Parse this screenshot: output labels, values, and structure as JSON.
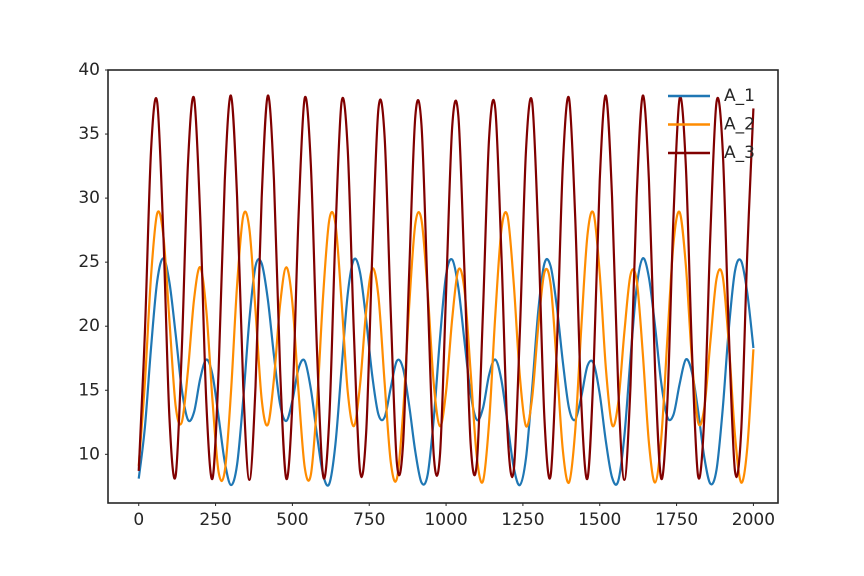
{
  "chart_data": {
    "type": "line",
    "x": [
      0,
      20,
      40,
      60,
      80,
      100,
      120,
      140,
      160,
      180,
      200,
      220,
      240,
      260,
      280,
      300,
      320,
      340,
      360,
      380,
      400,
      420,
      440,
      460,
      480,
      500,
      520,
      540,
      560,
      580,
      600,
      620,
      640,
      660,
      680,
      700,
      720,
      740,
      760,
      780,
      800,
      820,
      840,
      860,
      880,
      900,
      920,
      940,
      960,
      980,
      1000,
      1020,
      1040,
      1060,
      1080,
      1100,
      1120,
      1140,
      1160,
      1180,
      1200,
      1220,
      1240,
      1260,
      1280,
      1300,
      1320,
      1340,
      1360,
      1380,
      1400,
      1420,
      1440,
      1460,
      1480,
      1500,
      1520,
      1540,
      1560,
      1580,
      1600,
      1620,
      1640,
      1660,
      1680,
      1700,
      1720,
      1740,
      1760,
      1780,
      1800,
      1820,
      1840,
      1860,
      1880,
      1900,
      1920,
      1940,
      1960,
      1980,
      2000
    ],
    "series": [
      {
        "name": "A_1",
        "color": "#1f77b4",
        "values": [
          8.1,
          12.1,
          18.3,
          23.5,
          25.3,
          23.4,
          19.4,
          15.1,
          12.7,
          13.3,
          15.9,
          17.4,
          16.2,
          12.9,
          9.4,
          7.6,
          9.2,
          14.3,
          20.5,
          24.7,
          24.9,
          22.1,
          17.7,
          13.9,
          12.6,
          14.2,
          16.7,
          17.3,
          15.1,
          11.5,
          8.4,
          7.7,
          10.8,
          16.7,
          22.5,
          25.2,
          24.2,
          20.5,
          16.1,
          13.1,
          12.9,
          15.2,
          17.3,
          16.7,
          13.8,
          10.2,
          7.8,
          8.4,
          12.8,
          19.0,
          24.0,
          25.2,
          23.0,
          18.8,
          14.7,
          12.7,
          13.6,
          16.2,
          17.4,
          15.8,
          12.4,
          9.0,
          7.6,
          9.7,
          15.1,
          21.2,
          24.9,
          24.7,
          21.6,
          17.2,
          13.6,
          12.7,
          14.5,
          16.9,
          17.1,
          14.7,
          11.0,
          8.2,
          7.9,
          11.4,
          17.5,
          23.0,
          25.3,
          23.8,
          20.0,
          15.6,
          12.9,
          13.1,
          15.5,
          17.4,
          16.4,
          13.4,
          9.8,
          7.7,
          8.8,
          13.5,
          19.8,
          24.3,
          25.1,
          22.6,
          18.3
        ]
      },
      {
        "name": "A_2",
        "color": "#ff8c00",
        "values": [
          9.1,
          15.6,
          23.9,
          28.8,
          27.1,
          20.4,
          13.8,
          12.5,
          16.5,
          22.1,
          24.6,
          21.2,
          14.2,
          8.6,
          8.7,
          14.8,
          23.2,
          28.6,
          27.6,
          21.2,
          14.3,
          12.3,
          15.9,
          21.7,
          24.6,
          21.8,
          14.9,
          9.0,
          8.4,
          14.0,
          22.4,
          28.3,
          28.0,
          21.9,
          14.9,
          12.2,
          15.4,
          21.2,
          24.5,
          22.3,
          15.6,
          9.4,
          8.1,
          13.2,
          21.6,
          28.0,
          28.3,
          22.7,
          15.5,
          12.2,
          14.9,
          20.6,
          24.4,
          22.8,
          16.4,
          9.8,
          7.9,
          12.5,
          20.8,
          27.5,
          28.6,
          23.4,
          16.1,
          12.2,
          14.4,
          20.0,
          24.2,
          23.3,
          17.1,
          10.3,
          7.8,
          11.8,
          19.9,
          27.1,
          28.8,
          24.1,
          16.7,
          12.3,
          14.0,
          19.5,
          24.0,
          23.6,
          17.9,
          10.9,
          7.8,
          11.2,
          19.0,
          26.5,
          28.9,
          24.8,
          17.4,
          12.5,
          13.6,
          18.8,
          23.7,
          23.9,
          18.6,
          11.5,
          7.8,
          10.5,
          18.2
        ]
      },
      {
        "name": "A_3",
        "color": "#800000",
        "values": [
          8.7,
          19.5,
          33.7,
          37.5,
          27.2,
          12.8,
          8.3,
          18.1,
          32.6,
          37.8,
          28.6,
          14.0,
          8.1,
          16.6,
          31.4,
          38.0,
          30.1,
          15.3,
          8.0,
          15.3,
          30.0,
          38.0,
          31.4,
          16.6,
          8.1,
          14.0,
          28.6,
          37.8,
          32.6,
          18.1,
          8.3,
          12.8,
          27.2,
          37.5,
          33.8,
          19.5,
          8.7,
          11.7,
          25.7,
          37.0,
          34.8,
          21.1,
          9.3,
          10.8,
          24.2,
          36.4,
          35.7,
          22.6,
          9.9,
          9.9,
          22.6,
          35.6,
          36.4,
          24.2,
          10.8,
          9.3,
          21.1,
          34.7,
          37.0,
          25.7,
          11.7,
          8.7,
          19.5,
          33.7,
          37.5,
          27.2,
          12.8,
          8.3,
          18.1,
          32.6,
          37.8,
          28.6,
          14.0,
          8.1,
          16.6,
          31.4,
          38.0,
          30.1,
          15.3,
          8.0,
          15.3,
          30.0,
          38.0,
          31.4,
          16.6,
          8.1,
          14.0,
          28.6,
          37.8,
          32.6,
          18.1,
          8.3,
          12.8,
          27.2,
          37.5,
          33.8,
          19.5,
          8.7,
          11.7,
          25.7,
          37.0
        ]
      }
    ],
    "xlim": [
      -100,
      2080
    ],
    "ylim": [
      6.2,
      40
    ],
    "xticks": [
      0,
      250,
      500,
      750,
      1000,
      1250,
      1500,
      1750,
      2000
    ],
    "yticks": [
      10,
      15,
      20,
      25,
      30,
      35,
      40
    ],
    "grid": false,
    "legend": "upper right"
  }
}
